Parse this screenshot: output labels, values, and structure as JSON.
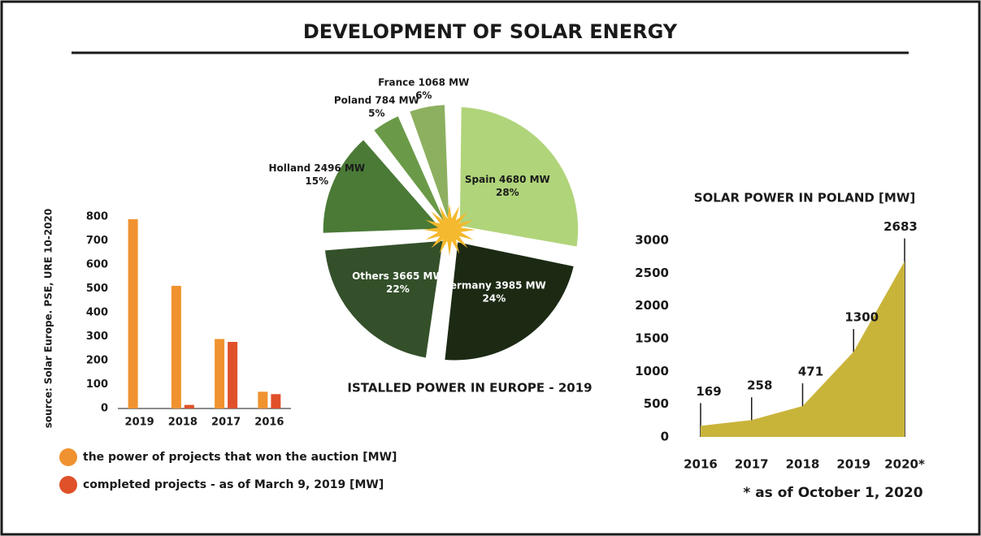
{
  "title": "DEVELOPMENT OF SOLAR ENERGY",
  "chart_data": [
    {
      "type": "bar",
      "source": "source: Solar Europe. PSE, URE 10-2020",
      "categories": [
        "2019",
        "2018",
        "2017",
        "2016"
      ],
      "series": [
        {
          "name": "the power of projects that won the auction  [MW]",
          "color": "#f0922f",
          "values": [
            790,
            512,
            290,
            70
          ]
        },
        {
          "name": "completed projects - as of March 9, 2019 [MW]",
          "color": "#e0512a",
          "values": [
            0,
            15,
            278,
            60
          ]
        }
      ],
      "ylim": [
        0,
        800
      ],
      "yticks": [
        0,
        100,
        200,
        300,
        400,
        500,
        600,
        700,
        800
      ]
    },
    {
      "type": "pie",
      "title": "ISTALLED POWER IN EUROPE - 2019",
      "labels": [
        "Spain 4680 MW",
        "Germany 3985 MW",
        "Others 3665 MW",
        "Holland 2496 MW",
        "Poland 784 MW",
        "France 1068 MW"
      ],
      "values": [
        4680,
        3985,
        3665,
        2496,
        784,
        1068
      ],
      "percents": [
        28,
        24,
        22,
        15,
        5,
        6
      ],
      "percent_labels": [
        "28%",
        "24%",
        "22%",
        "15%",
        "5%",
        "6%"
      ],
      "colors": [
        "#b0d47a",
        "#1c2a14",
        "#33502a",
        "#4a7a36",
        "#6a9a48",
        "#8db060"
      ]
    },
    {
      "type": "area",
      "title": "SOLAR POWER IN POLAND [MW]",
      "categories": [
        "2016",
        "2017",
        "2018",
        "2019",
        "2020*"
      ],
      "values": [
        169,
        258,
        471,
        1300,
        2683
      ],
      "color": "#c9b43a",
      "ylim": [
        0,
        3000
      ],
      "yticks": [
        0,
        500,
        1000,
        1500,
        2000,
        2500,
        3000
      ],
      "note": "* as of October 1, 2020"
    }
  ]
}
